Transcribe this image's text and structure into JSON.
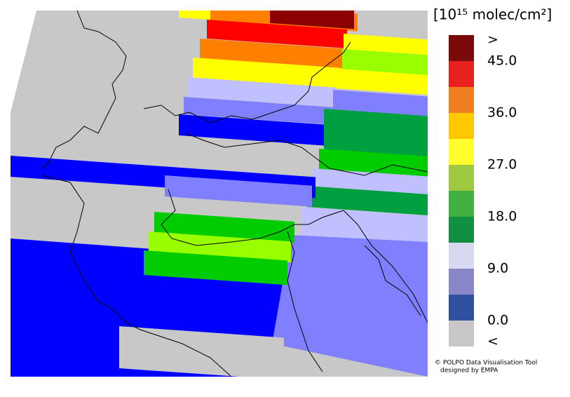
{
  "legend": {
    "title": "[10¹⁵ molec/cm²]",
    "labels": [
      ">",
      "45.0",
      "36.0",
      "27.0",
      "18.0",
      "9.0",
      "0.0",
      "<"
    ],
    "colors": [
      "#7a0a0a",
      "#e8201e",
      "#f07d1e",
      "#ffc800",
      "#ffff30",
      "#a0c840",
      "#40b040",
      "#109040",
      "#d8d8f0",
      "#8888c8",
      "#3050a0",
      "#c8c8c8"
    ]
  },
  "credit": [
    "© POLPO Data Visualisation Tool",
    "designed by EMPA"
  ]
}
